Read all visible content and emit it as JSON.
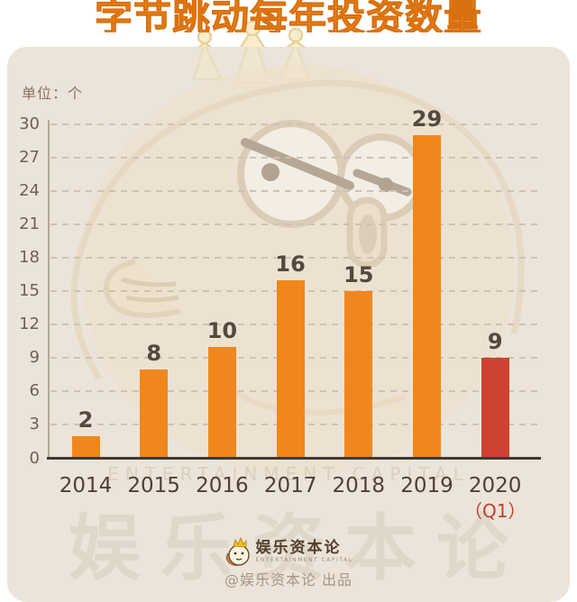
{
  "chart_data": {
    "type": "bar",
    "title": "字节跳动每年投资数量",
    "unit_label": "单位：个",
    "categories": [
      "2014",
      "2015",
      "2016",
      "2017",
      "2018",
      "2019",
      "2020"
    ],
    "category_sublabels": [
      "",
      "",
      "",
      "",
      "",
      "",
      "（Q1）"
    ],
    "values": [
      2,
      8,
      10,
      16,
      15,
      29,
      9
    ],
    "ylim": [
      0,
      30
    ],
    "yticks": [
      0,
      3,
      6,
      9,
      12,
      15,
      18,
      21,
      24,
      27,
      30
    ],
    "grid": "horizontal-dashed",
    "legend": "none",
    "bar_colors": [
      "#f0871d",
      "#f0871d",
      "#f0871d",
      "#f0871d",
      "#f0871d",
      "#f0871d",
      "#cd4233"
    ]
  },
  "watermarks": {
    "english_caps": "ENTERTAINMENT CAPITAL",
    "big_chinese": "娱乐资本论"
  },
  "footer": {
    "brand_name": "娱乐资本论",
    "brand_subtitle": "ENTERTAINMENT CAPITAL",
    "credit_line": "@娱乐资本论 出品"
  },
  "colors": {
    "bar_orange": "#f0871d",
    "bar_red": "#cd4233",
    "panel_bg": "#ece4d8",
    "title_orange": "#f0871d",
    "value_label": "#55483d",
    "axis_label": "#6e6156",
    "year_label": "#4d4136",
    "q1_red": "#c33d2e",
    "unit_label": "#8a7265",
    "gridline": "#cdc2b4",
    "baseline": "#413931"
  }
}
